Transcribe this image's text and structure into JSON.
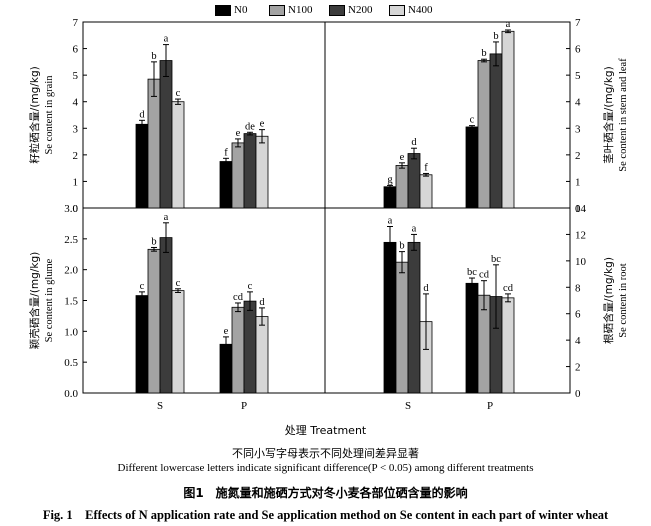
{
  "legend": {
    "items": [
      {
        "label": "N0",
        "color": "#000000"
      },
      {
        "label": "N100",
        "color": "#a3a3a3"
      },
      {
        "label": "N200",
        "color": "#3c3c3c"
      },
      {
        "label": "N400",
        "color": "#d6d6d6"
      }
    ]
  },
  "xlabel": "处理 Treatment",
  "note_cn": "不同小写字母表示不同处理间差异显著",
  "note_en": "Different lowercase letters indicate significant difference(P < 0.05) among different treatments",
  "caption_cn": "图1　施氮量和施硒方式对冬小麦各部位硒含量的影响",
  "caption_en": "Fig. 1　Effects of N application rate and Se application method on Se content in each part of winter wheat",
  "chart_data": [
    {
      "type": "bar",
      "panel": "top-left",
      "ylabel_cn": "籽粒硒含量/(mg/kg)",
      "ylabel_en": "Se content in grain",
      "ylim": [
        0,
        7
      ],
      "yticks": [
        "0",
        "1",
        "2",
        "3",
        "4",
        "5",
        "6",
        "7"
      ],
      "categories": [
        "S",
        "P"
      ],
      "series": [
        {
          "name": "N0",
          "values": [
            3.15,
            1.75
          ],
          "errors": [
            0.15,
            0.12
          ],
          "letters": [
            "d",
            "f"
          ]
        },
        {
          "name": "N100",
          "values": [
            4.85,
            2.45
          ],
          "errors": [
            0.65,
            0.15
          ],
          "letters": [
            "b",
            "e"
          ]
        },
        {
          "name": "N200",
          "values": [
            5.55,
            2.8
          ],
          "errors": [
            0.6,
            0.05
          ],
          "letters": [
            "a",
            "de"
          ]
        },
        {
          "name": "N400",
          "values": [
            4.0,
            2.7
          ],
          "errors": [
            0.1,
            0.25
          ],
          "letters": [
            "c",
            "e"
          ]
        }
      ]
    },
    {
      "type": "bar",
      "panel": "top-right",
      "ylabel_cn": "茎叶硒含量/(mg/kg)",
      "ylabel_en": "Se content in stem and leaf",
      "ylim": [
        0,
        7
      ],
      "yticks": [
        "0",
        "1",
        "2",
        "3",
        "4",
        "5",
        "6",
        "7"
      ],
      "categories": [
        "S",
        "P"
      ],
      "series": [
        {
          "name": "N0",
          "values": [
            0.8,
            3.05
          ],
          "errors": [
            0.05,
            0.05
          ],
          "letters": [
            "g",
            "c"
          ]
        },
        {
          "name": "N100",
          "values": [
            1.6,
            5.55
          ],
          "errors": [
            0.1,
            0.05
          ],
          "letters": [
            "e",
            "b"
          ]
        },
        {
          "name": "N200",
          "values": [
            2.05,
            5.8
          ],
          "errors": [
            0.2,
            0.45
          ],
          "letters": [
            "d",
            "b"
          ]
        },
        {
          "name": "N400",
          "values": [
            1.25,
            6.65
          ],
          "errors": [
            0.05,
            0.05
          ],
          "letters": [
            "f",
            "a"
          ]
        }
      ]
    },
    {
      "type": "bar",
      "panel": "bottom-left",
      "ylabel_cn": "颖壳硒含量/(mg/kg)",
      "ylabel_en": "Se content in glume",
      "ylim": [
        0,
        3.0
      ],
      "yticks": [
        "0.0",
        "0.5",
        "1.0",
        "1.5",
        "2.0",
        "2.5",
        "3.0"
      ],
      "categories": [
        "S",
        "P"
      ],
      "series": [
        {
          "name": "N0",
          "values": [
            1.58,
            0.79
          ],
          "errors": [
            0.06,
            0.12
          ],
          "letters": [
            "c",
            "e"
          ]
        },
        {
          "name": "N100",
          "values": [
            2.33,
            1.39
          ],
          "errors": [
            0.03,
            0.07
          ],
          "letters": [
            "b",
            "cd"
          ]
        },
        {
          "name": "N200",
          "values": [
            2.52,
            1.49
          ],
          "errors": [
            0.24,
            0.15
          ],
          "letters": [
            "a",
            "c"
          ]
        },
        {
          "name": "N400",
          "values": [
            1.66,
            1.24
          ],
          "errors": [
            0.03,
            0.14
          ],
          "letters": [
            "c",
            "d"
          ]
        }
      ]
    },
    {
      "type": "bar",
      "panel": "bottom-right",
      "ylabel_cn": "根硒含量/(mg/kg)",
      "ylabel_en": "Se content in root",
      "ylim": [
        0,
        14
      ],
      "yticks": [
        "0",
        "2",
        "4",
        "6",
        "8",
        "10",
        "12",
        "14"
      ],
      "categories": [
        "S",
        "P"
      ],
      "series": [
        {
          "name": "N0",
          "values": [
            11.4,
            8.3
          ],
          "errors": [
            1.2,
            0.4
          ],
          "letters": [
            "a",
            "bc"
          ]
        },
        {
          "name": "N100",
          "values": [
            9.9,
            7.4
          ],
          "errors": [
            0.8,
            1.1
          ],
          "letters": [
            "b",
            "cd"
          ]
        },
        {
          "name": "N200",
          "values": [
            11.4,
            7.3
          ],
          "errors": [
            0.6,
            2.4
          ],
          "letters": [
            "a",
            "bc"
          ]
        },
        {
          "name": "N400",
          "values": [
            5.4,
            7.2
          ],
          "errors": [
            2.1,
            0.3
          ],
          "letters": [
            "d",
            "cd"
          ]
        }
      ]
    }
  ]
}
